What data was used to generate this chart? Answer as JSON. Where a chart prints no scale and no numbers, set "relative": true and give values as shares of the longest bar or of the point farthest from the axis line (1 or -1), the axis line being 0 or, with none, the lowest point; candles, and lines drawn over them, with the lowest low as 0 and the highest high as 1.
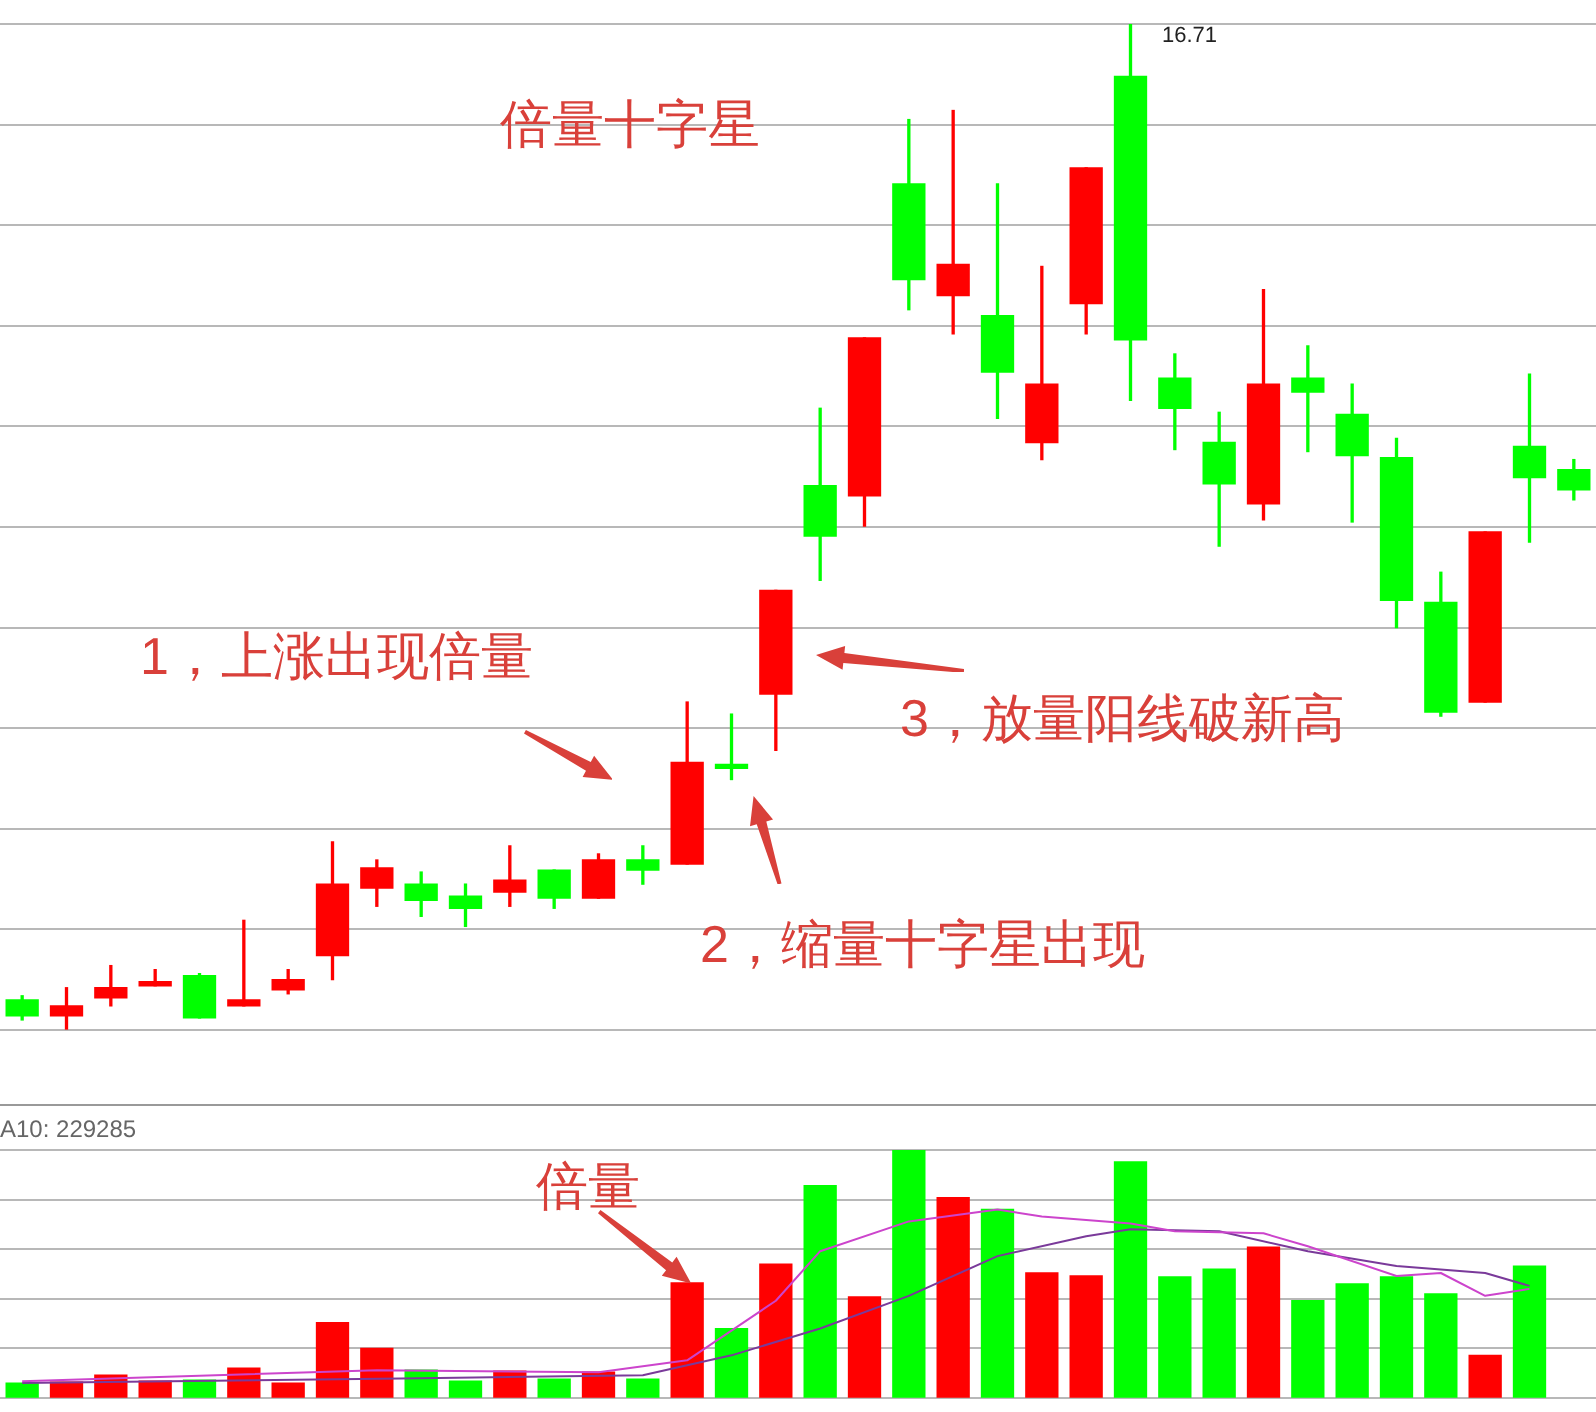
{
  "chart_data": [
    {
      "type": "candlestick",
      "relative": true,
      "grid": true,
      "categories": [
        null,
        null,
        null,
        null,
        null,
        null,
        null,
        null,
        null,
        null,
        null,
        null,
        null,
        null,
        null,
        null,
        null,
        null,
        null,
        null,
        null,
        null,
        null,
        null,
        null,
        null,
        null,
        null,
        null,
        null,
        null,
        null,
        null,
        null,
        null,
        null
      ],
      "ohlc": [
        [
          0.03,
          0.034,
          0.01,
          0.014
        ],
        [
          0.014,
          0.042,
          0,
          0.024
        ],
        [
          0.032,
          0.064,
          0.024,
          0.042
        ],
        [
          0.044,
          0.06,
          0.044,
          0.046
        ],
        [
          0.054,
          0.056,
          0.012,
          0.012
        ],
        [
          0.024,
          0.109,
          0.024,
          0.03
        ],
        [
          0.04,
          0.06,
          0.036,
          0.05
        ],
        [
          0.074,
          0.187,
          0.05,
          0.145
        ],
        [
          0.141,
          0.169,
          0.123,
          0.161
        ],
        [
          0.145,
          0.157,
          0.113,
          0.129
        ],
        [
          0.133,
          0.145,
          0.103,
          0.121
        ],
        [
          0.137,
          0.183,
          0.123,
          0.149
        ],
        [
          0.159,
          0.159,
          0.121,
          0.131
        ],
        [
          0.131,
          0.175,
          0.131,
          0.169
        ],
        [
          0.169,
          0.183,
          0.145,
          0.159
        ],
        [
          0.165,
          0.326,
          0.165,
          0.266
        ],
        [
          0.264,
          0.314,
          0.249,
          0.26
        ],
        [
          0.334,
          0.437,
          0.278,
          0.437
        ],
        [
          0.541,
          0.618,
          0.447,
          0.491
        ],
        [
          0.531,
          0.688,
          0.501,
          0.688
        ],
        [
          0.841,
          0.905,
          0.716,
          0.746
        ],
        [
          0.73,
          0.914,
          0.692,
          0.761
        ],
        [
          0.71,
          0.841,
          0.608,
          0.654
        ],
        [
          0.584,
          0.759,
          0.567,
          0.642
        ],
        [
          0.722,
          0.857,
          0.692,
          0.857
        ],
        [
          0.948,
          1,
          0.626,
          0.686
        ],
        [
          0.648,
          0.672,
          0.577,
          0.618
        ],
        [
          0.584,
          0.614,
          0.481,
          0.543
        ],
        [
          0.523,
          0.736,
          0.507,
          0.642
        ],
        [
          0.648,
          0.68,
          0.575,
          0.634
        ],
        [
          0.612,
          0.642,
          0.505,
          0.571
        ],
        [
          0.569,
          0.588,
          0.4,
          0.427
        ],
        [
          0.425,
          0.455,
          0.312,
          0.316
        ],
        [
          0.326,
          0.495,
          0.326,
          0.495
        ],
        [
          0.58,
          0.652,
          0.485,
          0.549
        ],
        [
          0.557,
          0.567,
          0.527,
          0.537
        ]
      ],
      "colors": [
        "#00ff00",
        "#ff0000",
        "#ff0000",
        "#ff0000",
        "#00ff00",
        "#ff0000",
        "#ff0000",
        "#ff0000",
        "#ff0000",
        "#00ff00",
        "#00ff00",
        "#ff0000",
        "#00ff00",
        "#ff0000",
        "#00ff00",
        "#ff0000",
        "#00ff00",
        "#ff0000",
        "#00ff00",
        "#ff0000",
        "#00ff00",
        "#ff0000",
        "#00ff00",
        "#ff0000",
        "#ff0000",
        "#00ff00",
        "#00ff00",
        "#00ff00",
        "#ff0000",
        "#00ff00",
        "#00ff00",
        "#00ff00",
        "#00ff00",
        "#ff0000",
        "#00ff00",
        "#00ff00"
      ],
      "annotations": [
        "倍量十字星",
        "1，上涨出现倍量",
        "2，缩量十字星出现",
        "3，放量阳线破新高",
        "16.71"
      ]
    },
    {
      "type": "bar",
      "relative": true,
      "grid": true,
      "categories": [
        null,
        null,
        null,
        null,
        null,
        null,
        null,
        null,
        null,
        null,
        null,
        null,
        null,
        null,
        null,
        null,
        null,
        null,
        null,
        null,
        null,
        null,
        null,
        null,
        null,
        null,
        null,
        null,
        null,
        null,
        null,
        null,
        null,
        null,
        null,
        null
      ],
      "series": [
        {
          "type": "bar",
          "values": [
            0.06,
            0.064,
            0.092,
            0.068,
            0.072,
            0.12,
            0.06,
            0.304,
            0.2,
            0.112,
            0.068,
            0.108,
            0.076,
            0.104,
            0.076,
            0.464,
            0.28,
            0.54,
            0.856,
            0.408,
            1,
            0.808,
            0.76,
            0.504,
            0.492,
            0.952,
            0.488,
            0.52,
            0.608,
            0.392,
            0.46,
            0.488,
            0.42,
            0.172,
            0.532,
            null
          ],
          "colors": [
            "#00ff00",
            "#ff0000",
            "#ff0000",
            "#ff0000",
            "#00ff00",
            "#ff0000",
            "#ff0000",
            "#ff0000",
            "#ff0000",
            "#00ff00",
            "#00ff00",
            "#ff0000",
            "#00ff00",
            "#ff0000",
            "#00ff00",
            "#ff0000",
            "#00ff00",
            "#ff0000",
            "#00ff00",
            "#ff0000",
            "#00ff00",
            "#ff0000",
            "#00ff00",
            "#ff0000",
            "#ff0000",
            "#00ff00",
            "#00ff00",
            "#00ff00",
            "#ff0000",
            "#00ff00",
            "#00ff00",
            "#00ff00",
            "#00ff00",
            "#ff0000",
            "#00ff00",
            "#00ff00"
          ]
        },
        {
          "type": "line",
          "color": "#cc44cc",
          "values": [
            0.068,
            null,
            null,
            null,
            null,
            null,
            null,
            null,
            0.112,
            null,
            null,
            null,
            null,
            0.104,
            null,
            0.152,
            null,
            0.392,
            0.592,
            null,
            0.712,
            null,
            0.76,
            0.732,
            null,
            0.704,
            0.672,
            null,
            0.664,
            0.612,
            null,
            0.492,
            0.504,
            0.412,
            0.44,
            null
          ]
        },
        {
          "type": "line",
          "color": "#7a3a9a",
          "values": [
            0.06,
            null,
            null,
            null,
            null,
            null,
            null,
            null,
            null,
            0.08,
            null,
            null,
            null,
            null,
            0.092,
            null,
            0.172,
            null,
            0.28,
            null,
            0.412,
            null,
            0.572,
            null,
            0.652,
            0.68,
            null,
            0.672,
            null,
            0.592,
            null,
            0.532,
            null,
            0.504,
            0.452,
            null
          ]
        }
      ],
      "annotations": [
        "A10: 229285",
        "倍量"
      ]
    }
  ]
}
